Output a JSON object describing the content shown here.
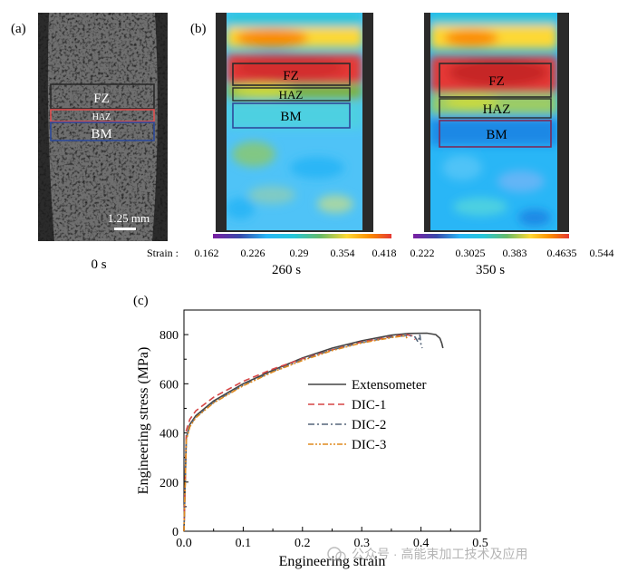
{
  "panels": {
    "a": {
      "label": "(a)",
      "zones": [
        "FZ",
        "HAZ",
        "BM"
      ],
      "scale_bar": "1.25 mm",
      "time": "0 s"
    },
    "b1": {
      "label": "(b)",
      "zones": [
        "FZ",
        "HAZ",
        "BM"
      ],
      "time": "260 s",
      "colorbar_title": "Strain :",
      "ticks": [
        "0.162",
        "0.226",
        "0.29",
        "0.354",
        "0.418"
      ]
    },
    "b2": {
      "zones": [
        "FZ",
        "HAZ",
        "BM"
      ],
      "time": "350 s",
      "ticks": [
        "0.222",
        "0.3025",
        "0.383",
        "0.4635",
        "0.544"
      ]
    },
    "c": {
      "label": "(c)"
    }
  },
  "colors": {
    "extensometer": "#444444",
    "dic1": "#d64545",
    "dic2": "#55657a",
    "dic3": "#e08a1e",
    "fz_box": "#2b2b2b",
    "haz_box_a": "#e05050",
    "bm_box_a": "#2e4a9a"
  },
  "watermark": "公众号 · 高能束加工技术及应用",
  "chart_data": {
    "type": "line",
    "xlabel": "Engineering strain",
    "ylabel": "Engineering stress (MPa)",
    "xlim": [
      0,
      0.5
    ],
    "ylim": [
      0,
      900
    ],
    "x_ticks": [
      "0.0",
      "0.1",
      "0.2",
      "0.3",
      "0.4",
      "0.5"
    ],
    "y_ticks": [
      "0",
      "200",
      "400",
      "600",
      "800"
    ],
    "legend_position": "center-right",
    "series": [
      {
        "name": "Extensometer",
        "style": "solid",
        "x": [
          0,
          0.004,
          0.01,
          0.02,
          0.05,
          0.1,
          0.15,
          0.2,
          0.25,
          0.3,
          0.35,
          0.38,
          0.41,
          0.425,
          0.432,
          0.435,
          0.437
        ],
        "y": [
          0,
          380,
          435,
          470,
          530,
          600,
          655,
          705,
          745,
          775,
          798,
          805,
          806,
          800,
          785,
          765,
          745
        ]
      },
      {
        "name": "DIC-1",
        "style": "dashed",
        "x": [
          0,
          0.004,
          0.01,
          0.02,
          0.05,
          0.1,
          0.15,
          0.2,
          0.25,
          0.3,
          0.35,
          0.375,
          0.385,
          0.39
        ],
        "y": [
          0,
          410,
          455,
          490,
          545,
          610,
          660,
          702,
          738,
          770,
          792,
          800,
          795,
          780
        ]
      },
      {
        "name": "DIC-2",
        "style": "dashdot",
        "x": [
          0,
          0.004,
          0.01,
          0.02,
          0.05,
          0.1,
          0.15,
          0.2,
          0.25,
          0.3,
          0.35,
          0.38,
          0.39,
          0.395,
          0.398,
          0.4,
          0.402
        ],
        "y": [
          0,
          380,
          430,
          465,
          525,
          595,
          650,
          698,
          738,
          768,
          790,
          797,
          790,
          770,
          800,
          760,
          745
        ]
      },
      {
        "name": "DIC-3",
        "style": "dashdotdot",
        "x": [
          0,
          0.004,
          0.01,
          0.02,
          0.05,
          0.1,
          0.15,
          0.2,
          0.25,
          0.3,
          0.35,
          0.37,
          0.375,
          0.378
        ],
        "y": [
          0,
          370,
          425,
          462,
          522,
          592,
          648,
          695,
          735,
          766,
          788,
          795,
          790,
          780
        ]
      }
    ]
  }
}
